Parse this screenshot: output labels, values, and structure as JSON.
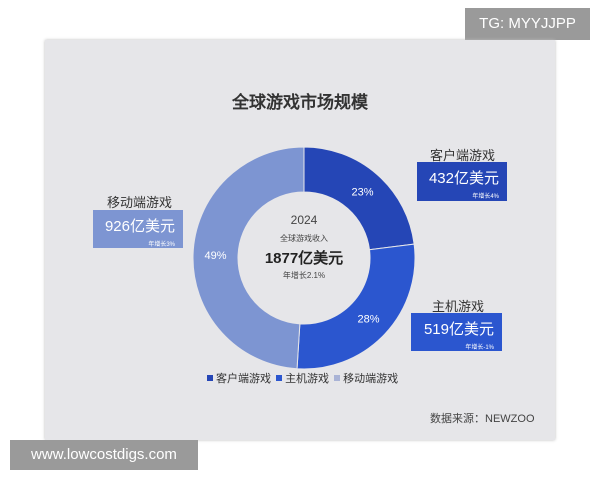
{
  "watermark_top": "TG: MYYJJPP",
  "watermark_bottom": "www.lowcostdigs.com",
  "chart_data": {
    "type": "pie",
    "title": "全球游戏市场规模",
    "center": {
      "year": "2024",
      "label": "全球游戏收入",
      "total": "1877亿美元",
      "growth": "年增长2.1%"
    },
    "slices": [
      {
        "name": "客户端游戏",
        "percent": 23,
        "value_label": "432亿美元",
        "growth": "年增长4%",
        "color": "#2546b6"
      },
      {
        "name": "主机游戏",
        "percent": 28,
        "value_label": "519亿美元",
        "growth": "年增长-1%",
        "color": "#2b56cf"
      },
      {
        "name": "移动端游戏",
        "percent": 49,
        "value_label": "926亿美元",
        "growth": "年增长3%",
        "color": "#7d95d2"
      }
    ],
    "legend": [
      "客户端游戏",
      "主机游戏",
      "移动端游戏"
    ],
    "legend_position": "bottom",
    "source": "数据来源：NEWZOO"
  }
}
